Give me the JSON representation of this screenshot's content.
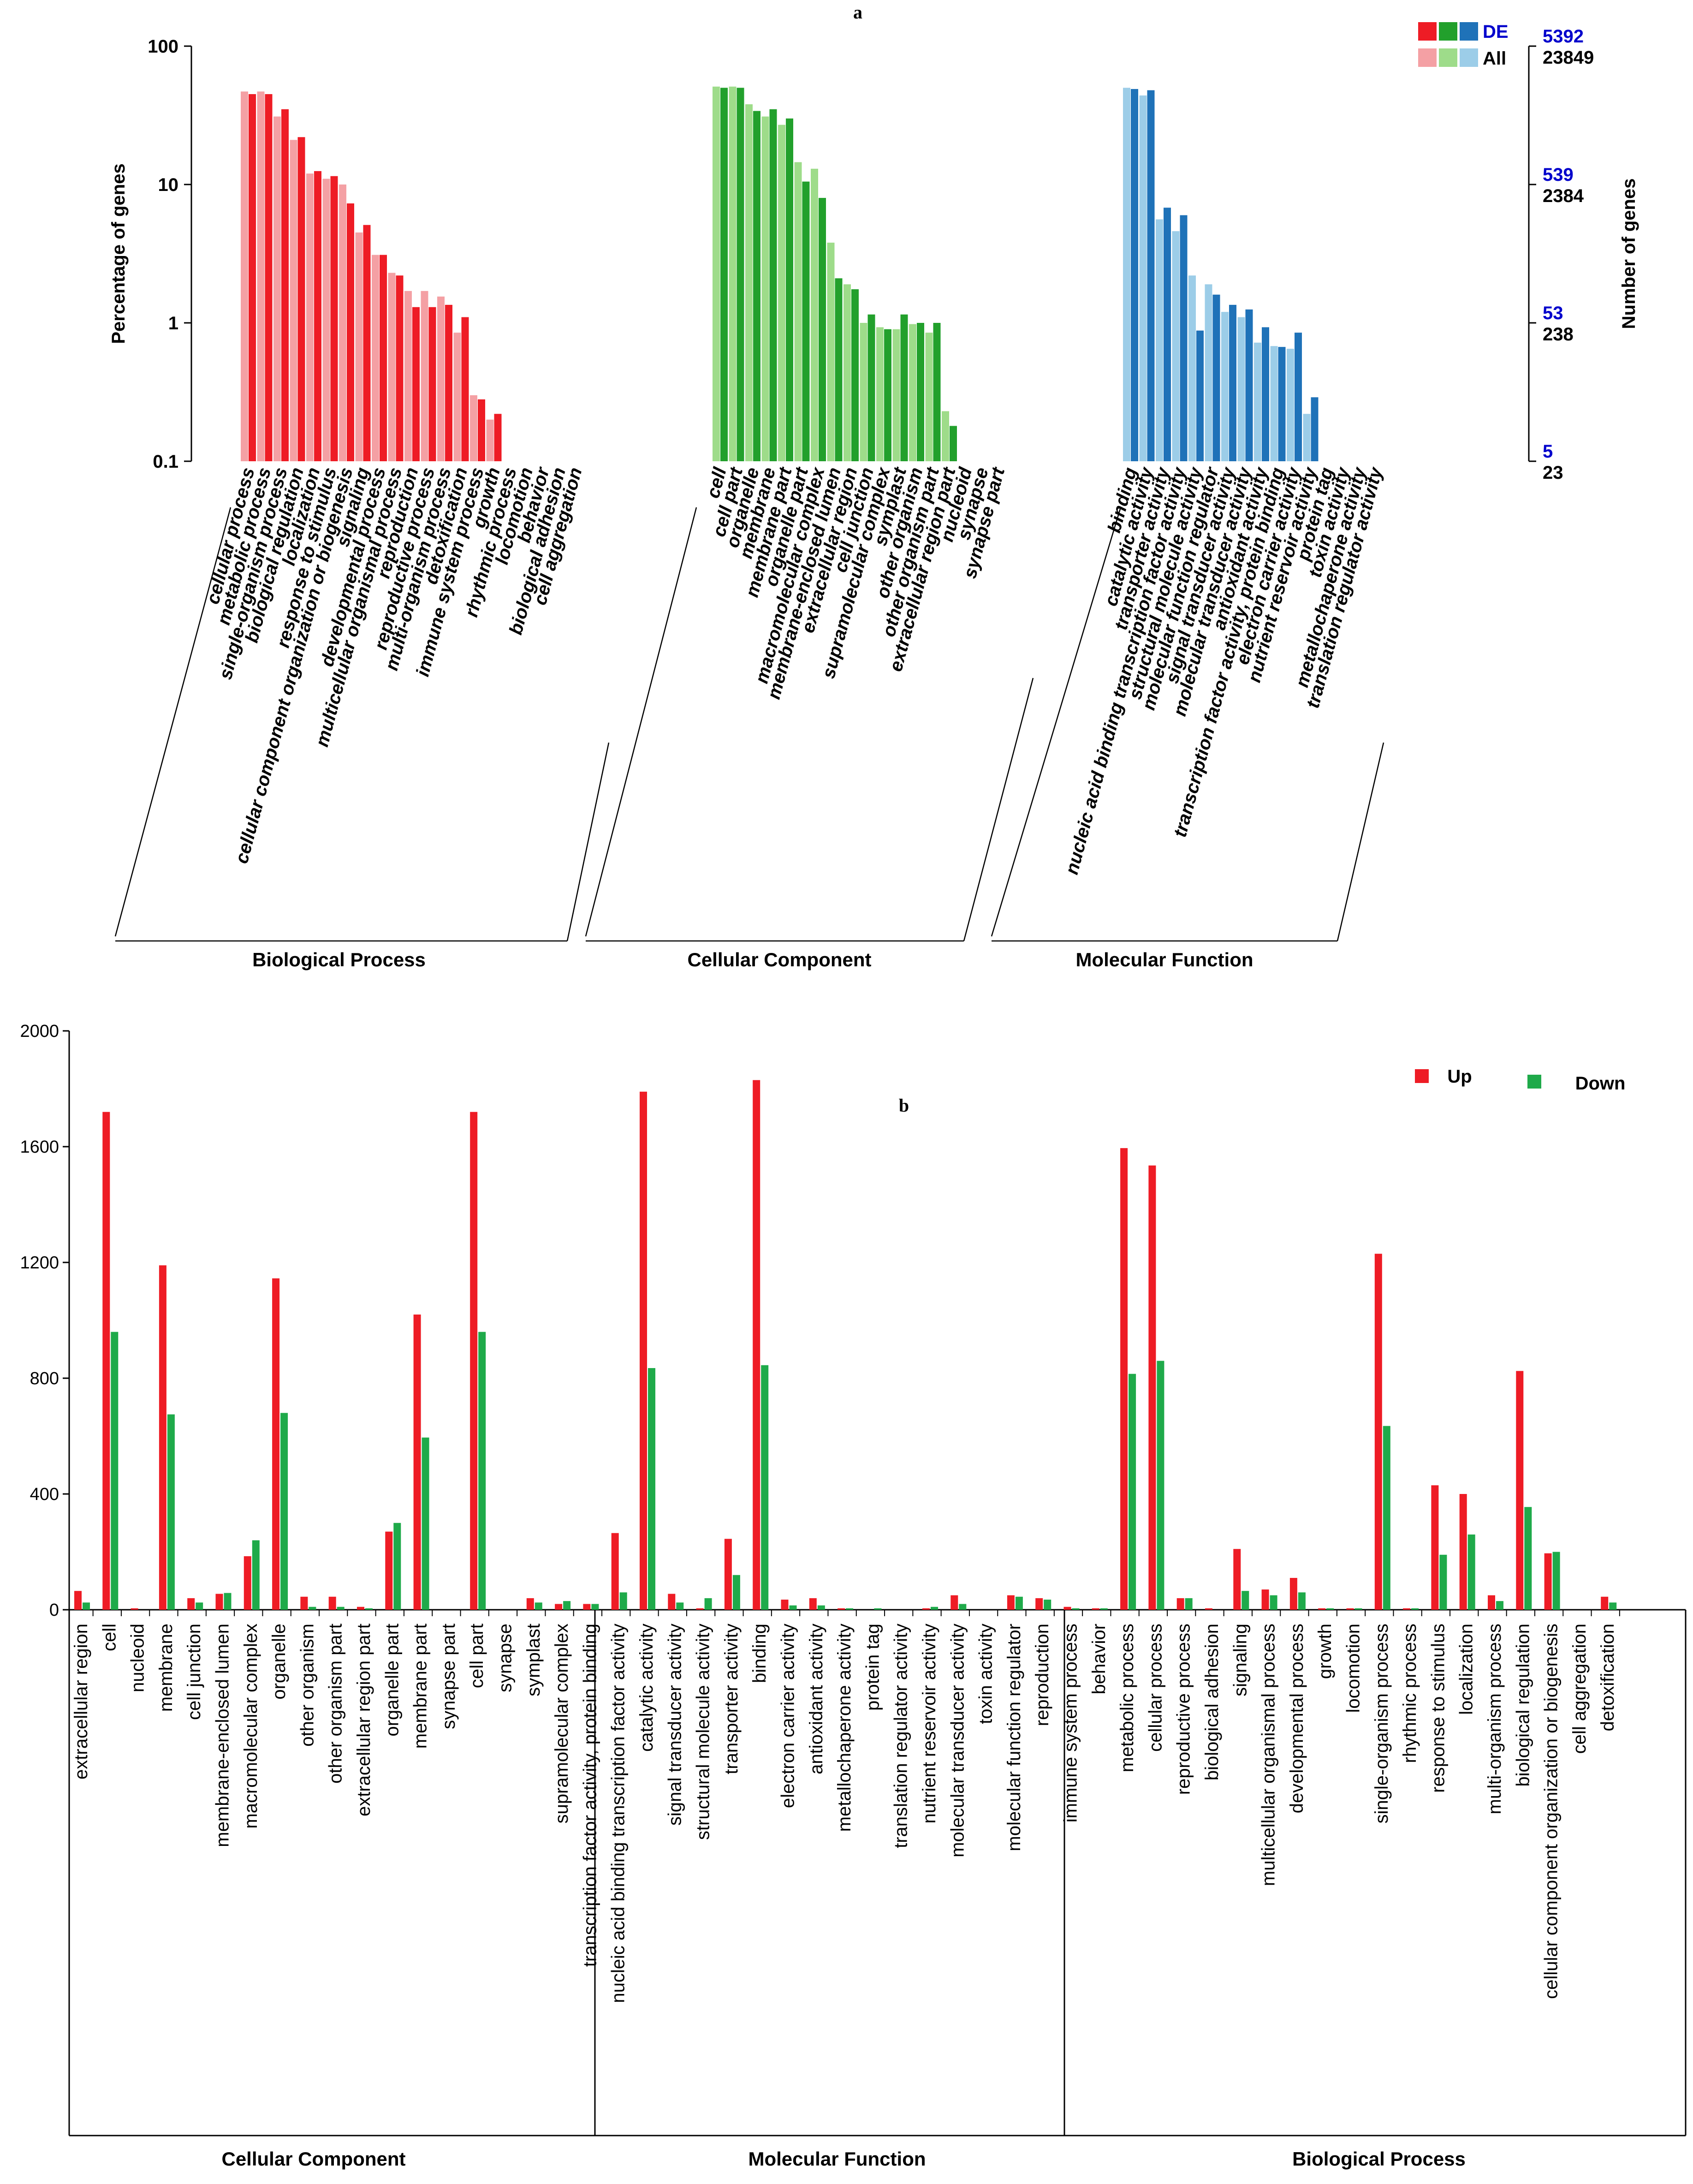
{
  "colors": {
    "bp_de": "#ee1c25",
    "bp_all": "#f4a0a4",
    "cc_de": "#22a02c",
    "cc_all": "#9edc8a",
    "mf_de": "#1f72b8",
    "mf_all": "#9ccde8",
    "up": "#ee1c25",
    "down": "#1faa4a",
    "right_blue": "#0000cc"
  },
  "chart_data": [
    {
      "type": "bar",
      "panel_label": "a",
      "ylabel": "Percentage of genes",
      "y2label": "Number of genes",
      "yscale": "log",
      "ylim": [
        0.1,
        100
      ],
      "yticks": [
        "100",
        "10",
        "1",
        "0.1"
      ],
      "y2ticks": [
        {
          "de": "5392",
          "all": "23849"
        },
        {
          "de": "539",
          "all": "2384"
        },
        {
          "de": "53",
          "all": "238"
        },
        {
          "de": "5",
          "all": "23"
        }
      ],
      "legend": {
        "de": "DE",
        "all": "All"
      },
      "groups": [
        {
          "name": "Biological Process",
          "categories": [
            "cellular process",
            "metabolic process",
            "single-organism process",
            "biological regulation",
            "localization",
            "response to stimulus",
            "cellular component organization or biogenesis",
            "signaling",
            "developmental process",
            "multicellular organismal process",
            "reproduction",
            "reproductive process",
            "multi-organism process",
            "detoxification",
            "immune system process",
            "growth",
            "rhythmic process",
            "locomotion",
            "behavior",
            "biological adhesion",
            "cell aggregation"
          ],
          "all": [
            47,
            47,
            31,
            21,
            12,
            11,
            10,
            4.5,
            3.1,
            2.3,
            1.7,
            1.7,
            1.55,
            0.85,
            0.3,
            0.2,
            0,
            0,
            0,
            0,
            0
          ],
          "de": [
            45,
            45,
            35,
            22,
            12.5,
            11.5,
            7.3,
            5.1,
            3.1,
            2.2,
            1.3,
            1.3,
            1.35,
            1.1,
            0.28,
            0.22,
            0,
            0,
            0,
            0,
            0
          ]
        },
        {
          "name": "Cellular Component",
          "categories": [
            "cell",
            "cell part",
            "organelle",
            "membrane",
            "membrane part",
            "organelle part",
            "macromolecular complex",
            "membrane-enclosed lumen",
            "extracellular region",
            "cell junction",
            "supramolecular complex",
            "symplast",
            "other organism",
            "other organism part",
            "extracellular region part",
            "nucleoid",
            "synapse",
            "synapse part"
          ],
          "all": [
            51,
            51,
            38,
            31,
            27,
            14.5,
            13,
            3.8,
            1.9,
            1.0,
            0.93,
            0.9,
            0.98,
            0.85,
            0.23,
            0,
            0,
            0
          ],
          "de": [
            50,
            50,
            34,
            35,
            30,
            10.5,
            8,
            2.1,
            1.75,
            1.15,
            0.9,
            1.15,
            1.0,
            1.0,
            0.18,
            0,
            0,
            0
          ]
        },
        {
          "name": "Molecular Function",
          "categories": [
            "binding",
            "catalytic activity",
            "transporter activity",
            "nucleic acid binding transcription factor activity",
            "structural molecule activity",
            "molecular function regulator",
            "signal transducer activity",
            "molecular transducer activity",
            "antioxidant activity",
            "transcription factor activity, protein binding",
            "electron carrier activity",
            "nutrient reservoir activity",
            "protein tag",
            "toxin activity",
            "metallochaperone activity",
            "translation regulator activity"
          ],
          "all": [
            50,
            44,
            5.6,
            4.6,
            2.2,
            1.9,
            1.2,
            1.1,
            0.72,
            0.68,
            0.65,
            0.22,
            0,
            0,
            0,
            0
          ],
          "de": [
            49,
            48,
            6.8,
            6.0,
            0.88,
            1.6,
            1.35,
            1.25,
            0.93,
            0.67,
            0.85,
            0.29,
            0,
            0,
            0,
            0
          ]
        }
      ]
    },
    {
      "type": "bar",
      "panel_label": "b",
      "ylim": [
        0,
        2000
      ],
      "yticks": [
        0,
        400,
        800,
        1200,
        1600,
        2000
      ],
      "legend": {
        "up": "Up",
        "down": "Down"
      },
      "groups": [
        {
          "name": "Cellular Component",
          "categories": [
            "extracellular region",
            "cell",
            "nucleoid",
            "membrane",
            "cell junction",
            "membrane-enclosed lumen",
            "macromolecular complex",
            "organelle",
            "other organism",
            "other organism part",
            "extracellular region part",
            "organelle part",
            "membrane part",
            "synapse part",
            "cell part",
            "synapse",
            "symplast",
            "supramolecular complex"
          ],
          "up": [
            65,
            1720,
            5,
            1190,
            40,
            55,
            185,
            1145,
            45,
            45,
            10,
            270,
            1020,
            0,
            1720,
            0,
            40,
            20
          ],
          "down": [
            25,
            960,
            0,
            675,
            25,
            58,
            240,
            680,
            10,
            10,
            5,
            300,
            595,
            0,
            960,
            0,
            25,
            30
          ]
        },
        {
          "name": "Molecular Function",
          "categories": [
            "transcription factor activity, protein binding",
            "nucleic acid binding transcription factor activity",
            "catalytic activity",
            "signal transducer activity",
            "structural molecule activity",
            "transporter activity",
            "binding",
            "electron carrier activity",
            "antioxidant activity",
            "metallochaperone activity",
            "protein tag",
            "translation regulator activity",
            "nutrient reservoir activity",
            "molecular transducer activity",
            "toxin activity",
            "molecular function regulator"
          ],
          "up": [
            20,
            265,
            1790,
            55,
            5,
            245,
            1830,
            35,
            40,
            5,
            0,
            0,
            5,
            50,
            0,
            50
          ],
          "down": [
            20,
            60,
            835,
            25,
            40,
            120,
            845,
            15,
            15,
            5,
            5,
            0,
            10,
            20,
            0,
            45
          ]
        },
        {
          "name": "Biological Process",
          "categories": [
            "reproduction",
            "immune system process",
            "behavior",
            "metabolic process",
            "cellular process",
            "reproductive process",
            "biological adhesion",
            "signaling",
            "multicellular organismal process",
            "developmental process",
            "growth",
            "locomotion",
            "single-organism process",
            "rhythmic process",
            "response to stimulus",
            "localization",
            "multi-organism process",
            "biological regulation",
            "cellular component organization or biogenesis",
            "cell aggregation",
            "detoxification"
          ],
          "up": [
            40,
            10,
            5,
            1595,
            1535,
            40,
            5,
            210,
            70,
            110,
            5,
            5,
            1230,
            5,
            430,
            400,
            50,
            825,
            195,
            0,
            45
          ],
          "down": [
            35,
            5,
            5,
            815,
            860,
            40,
            0,
            65,
            50,
            60,
            5,
            5,
            635,
            5,
            190,
            260,
            30,
            355,
            200,
            0,
            25
          ]
        }
      ]
    }
  ]
}
